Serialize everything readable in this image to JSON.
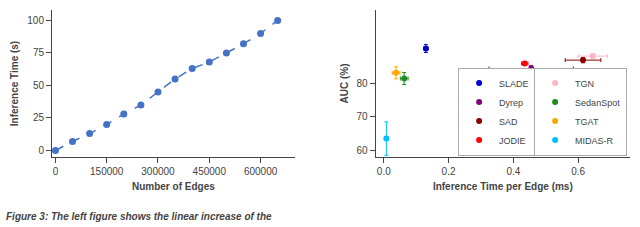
{
  "chart_data": [
    {
      "type": "line",
      "x": [
        0,
        50000,
        100000,
        150000,
        200000,
        250000,
        300000,
        350000,
        400000,
        450000,
        500000,
        550000,
        600000,
        650000
      ],
      "values": [
        0,
        7,
        13,
        20,
        28,
        35,
        45,
        55,
        63,
        68,
        75,
        82,
        90,
        100
      ],
      "color": "#4472C4",
      "marker": "circle",
      "line_style": "dashed",
      "xlabel": "Number of Edges",
      "ylabel": "Inference Time (s)",
      "xlim": [
        -10000,
        700000
      ],
      "ylim": [
        -5,
        108
      ],
      "xticks": [
        0,
        150000,
        300000,
        450000,
        600000
      ],
      "yticks": [
        0,
        25,
        50,
        75,
        100
      ],
      "grid": false
    },
    {
      "type": "scatter",
      "xlabel": "Inference Time per Edge (ms)",
      "ylabel": "AUC (%)",
      "xlim": [
        -0.025,
        0.76
      ],
      "ylim": [
        58,
        102
      ],
      "xticks": [
        {
          "value": 0.0,
          "label": "0.0"
        },
        0.2,
        0.4,
        0.6
      ],
      "yticks": [
        60,
        70,
        80
      ],
      "grid": false,
      "legend": "lower right",
      "marker": "circle",
      "series": [
        {
          "name": "SLADE",
          "color": "#0000CD",
          "x": [
            0.13
          ],
          "values": [
            90.5
          ],
          "xerr": [
            0.006
          ],
          "yerr": [
            1.2
          ]
        },
        {
          "name": "Dyrep",
          "color": "#800080",
          "x": [
            0.455
          ],
          "values": [
            84.5
          ],
          "xerr": [
            0.13
          ],
          "yerr": [
            0.9
          ]
        },
        {
          "name": "SAD",
          "color": "#8B0000",
          "x": [
            0.615
          ],
          "values": [
            87.0
          ],
          "xerr": [
            0.055
          ],
          "yerr": [
            0.8
          ]
        },
        {
          "name": "JODIE",
          "color": "#FF0000",
          "x": [
            0.435
          ],
          "values": [
            86.0
          ],
          "xerr": [
            0.01
          ],
          "yerr": [
            0.6
          ]
        },
        {
          "name": "TGN",
          "color": "#FFB6C1",
          "x": [
            0.645
          ],
          "values": [
            88.2
          ],
          "xerr": [
            0.045
          ],
          "yerr": [
            0.7
          ]
        },
        {
          "name": "SedanSpot",
          "color": "#228B22",
          "x": [
            0.063
          ],
          "values": [
            81.5
          ],
          "xerr": [
            0.012
          ],
          "yerr": [
            1.8
          ]
        },
        {
          "name": "TGAT",
          "color": "#FFA500",
          "x": [
            0.038
          ],
          "values": [
            83.2
          ],
          "xerr": [
            0.012
          ],
          "yerr": [
            1.8
          ]
        },
        {
          "name": "MIDAS-R",
          "color": "#00BFFF",
          "x": [
            0.008
          ],
          "values": [
            63.5
          ],
          "xerr": [
            0.006
          ],
          "yerr": [
            5.0
          ]
        }
      ]
    }
  ],
  "caption": "Figure 3: The left figure shows the linear increase of the"
}
